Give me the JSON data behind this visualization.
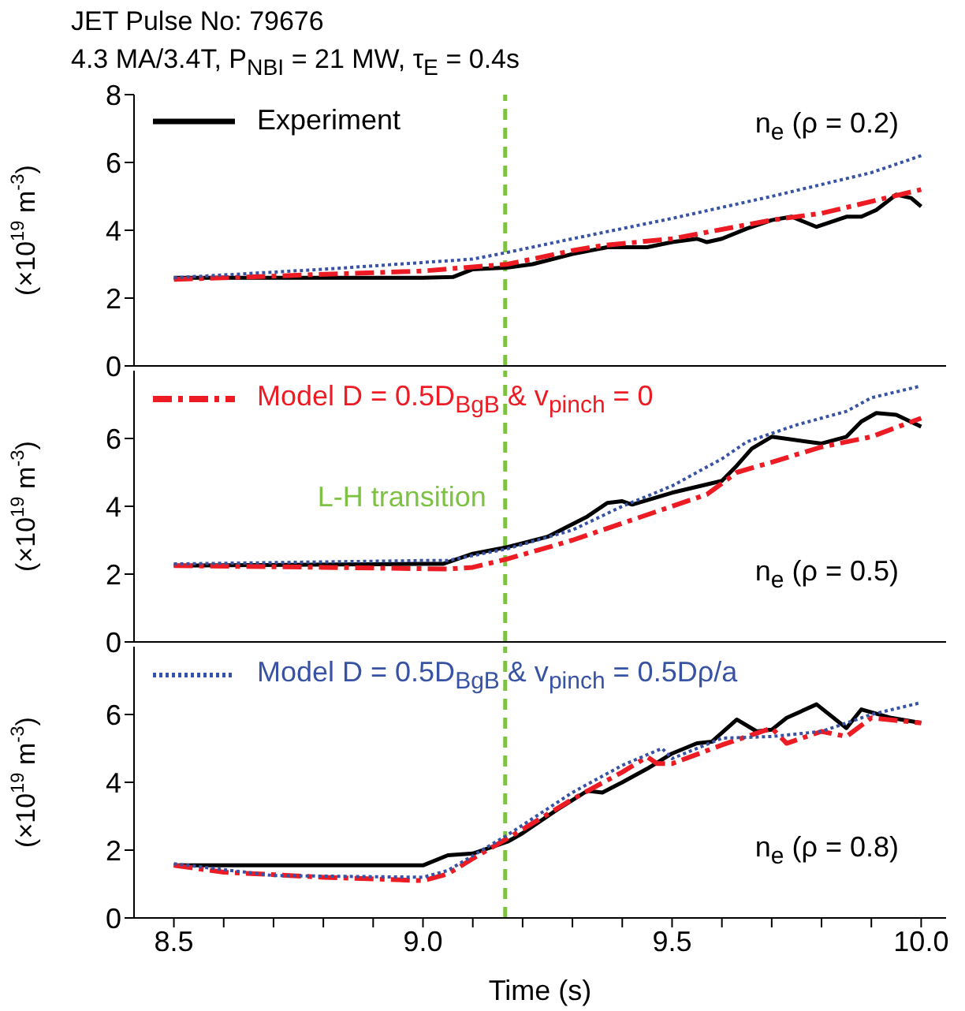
{
  "chart_data": [
    {
      "type": "line",
      "title": "JET Pulse No: 79676",
      "subtitle": "4.3 MA/3.4T, P$_{NBI}$ = 21 MW, τ$_{E}$ = 0.4s",
      "ylabel": "(×10$^{19}$ m$^{-3}$)",
      "xlim": [
        8.42,
        10.05
      ],
      "ylim": [
        0,
        8
      ],
      "yticks": [
        0,
        2,
        4,
        6,
        8
      ],
      "tick_labels": "y",
      "legend": "top left",
      "annotations": [
        "n$_{e}$ (ρ = 0.2)"
      ],
      "ref_lines": [
        {
          "axis": "x",
          "value": 9.165,
          "color": "#7dc242",
          "line_style": "dashed"
        }
      ],
      "series": [
        {
          "name": "Experiment",
          "color": "#000000",
          "line_style": "solid",
          "x": [
            8.5,
            9.0,
            9.06,
            9.1,
            9.17,
            9.22,
            9.3,
            9.37,
            9.45,
            9.5,
            9.55,
            9.57,
            9.6,
            9.65,
            9.7,
            9.74,
            9.79,
            9.85,
            9.88,
            9.91,
            9.95,
            9.98,
            10.0
          ],
          "values": [
            2.6,
            2.6,
            2.62,
            2.85,
            2.9,
            3.0,
            3.3,
            3.5,
            3.5,
            3.65,
            3.75,
            3.65,
            3.75,
            4.05,
            4.3,
            4.4,
            4.1,
            4.4,
            4.4,
            4.6,
            5.05,
            4.95,
            4.7
          ]
        },
        {
          "color": "#ed1c24",
          "line_style": "dashed",
          "x": [
            8.5,
            9.0,
            9.17,
            9.3,
            9.36,
            9.5,
            9.7,
            9.8,
            10.0
          ],
          "values": [
            2.55,
            2.8,
            3.0,
            3.4,
            3.55,
            3.75,
            4.3,
            4.5,
            5.2
          ]
        },
        {
          "color": "#3953a4",
          "line_style": "dotted",
          "x": [
            8.5,
            8.8,
            9.0,
            9.1,
            9.17,
            9.3,
            9.5,
            9.7,
            9.9,
            10.0
          ],
          "values": [
            2.6,
            2.85,
            3.05,
            3.15,
            3.35,
            3.75,
            4.35,
            5.0,
            5.7,
            6.2
          ]
        }
      ]
    },
    {
      "type": "line",
      "ylabel": "(×10$^{19}$ m$^{-3}$)",
      "xlim": [
        8.42,
        10.05
      ],
      "ylim": [
        0,
        8
      ],
      "yticks": [
        0,
        2,
        4,
        6
      ],
      "tick_labels": "y",
      "legend": "top left",
      "annotations": [
        "n$_{e}$ (ρ = 0.5)"
      ],
      "ref_lines": [
        {
          "axis": "x",
          "value": 9.165,
          "label": "L-H transition",
          "color": "#7dc242",
          "line_style": "dashed"
        }
      ],
      "series": [
        {
          "color": "#000000",
          "line_style": "solid",
          "x": [
            8.5,
            9.0,
            9.04,
            9.1,
            9.17,
            9.25,
            9.33,
            9.37,
            9.4,
            9.42,
            9.5,
            9.6,
            9.63,
            9.66,
            9.7,
            9.8,
            9.85,
            9.88,
            9.91,
            9.95,
            10.0
          ],
          "values": [
            2.25,
            2.3,
            2.3,
            2.6,
            2.8,
            3.1,
            3.7,
            4.1,
            4.15,
            4.05,
            4.4,
            4.75,
            5.2,
            5.7,
            6.05,
            5.85,
            6.05,
            6.5,
            6.75,
            6.7,
            6.35
          ]
        },
        {
          "name": "Model D = 0.5D$_{BgB}$ & v$_{pinch}$ = 0",
          "color": "#ed1c24",
          "line_style": "dashed",
          "x": [
            8.5,
            8.8,
            9.05,
            9.1,
            9.17,
            9.3,
            9.4,
            9.5,
            9.57,
            9.63,
            9.7,
            9.8,
            9.9,
            10.0
          ],
          "values": [
            2.25,
            2.2,
            2.15,
            2.2,
            2.45,
            3.0,
            3.5,
            4.0,
            4.35,
            5.0,
            5.3,
            5.75,
            6.05,
            6.6
          ]
        },
        {
          "color": "#3953a4",
          "line_style": "dotted",
          "x": [
            8.5,
            9.0,
            9.05,
            9.17,
            9.3,
            9.4,
            9.5,
            9.6,
            9.65,
            9.75,
            9.85,
            9.9,
            10.0
          ],
          "values": [
            2.3,
            2.4,
            2.4,
            2.75,
            3.3,
            4.0,
            4.6,
            5.4,
            5.9,
            6.4,
            6.8,
            7.2,
            7.55
          ]
        }
      ]
    },
    {
      "type": "line",
      "xlabel": "Time (s)",
      "ylabel": "(×10$^{19}$ m$^{-3}$)",
      "xlim": [
        8.42,
        10.05
      ],
      "ylim": [
        0,
        8
      ],
      "yticks": [
        0,
        2,
        4,
        6
      ],
      "legend": "top left",
      "annotations": [
        "n$_{e}$ (ρ = 0.8)"
      ],
      "xticks": [
        {
          "value": 8.5,
          "label": "8.5"
        },
        {
          "value": 8.6,
          "label": null
        },
        {
          "value": 8.7,
          "label": null
        },
        {
          "value": 8.8,
          "label": null
        },
        {
          "value": 8.9,
          "label": null
        },
        {
          "value": 9,
          "label": "9.0"
        },
        {
          "value": 9.1,
          "label": null
        },
        {
          "value": 9.2,
          "label": null
        },
        {
          "value": 9.3,
          "label": null
        },
        {
          "value": 9.4,
          "label": null
        },
        {
          "value": 9.5,
          "label": "9.5"
        },
        {
          "value": 9.6,
          "label": null
        },
        {
          "value": 9.7,
          "label": null
        },
        {
          "value": 9.8,
          "label": null
        },
        {
          "value": 9.9,
          "label": null
        },
        {
          "value": 10,
          "label": "10.0"
        }
      ],
      "ref_lines": [
        {
          "axis": "x",
          "value": 9.165,
          "color": "#7dc242",
          "line_style": "dashed"
        }
      ],
      "series": [
        {
          "color": "#000000",
          "line_style": "solid",
          "x": [
            8.5,
            9.0,
            9.05,
            9.1,
            9.17,
            9.2,
            9.27,
            9.33,
            9.36,
            9.4,
            9.45,
            9.5,
            9.55,
            9.58,
            9.63,
            9.67,
            9.7,
            9.73,
            9.79,
            9.85,
            9.88,
            9.94,
            10.0
          ],
          "values": [
            1.55,
            1.55,
            1.85,
            1.9,
            2.25,
            2.5,
            3.2,
            3.75,
            3.7,
            4.0,
            4.4,
            4.85,
            5.15,
            5.2,
            5.85,
            5.5,
            5.55,
            5.9,
            6.3,
            5.6,
            6.15,
            5.9,
            5.75
          ]
        },
        {
          "color": "#ed1c24",
          "line_style": "dashed",
          "x": [
            8.5,
            8.6,
            8.8,
            9.0,
            9.05,
            9.1,
            9.17,
            9.3,
            9.4,
            9.45,
            9.47,
            9.5,
            9.6,
            9.65,
            9.7,
            9.73,
            9.8,
            9.85,
            9.9,
            10.0
          ],
          "values": [
            1.55,
            1.35,
            1.2,
            1.1,
            1.3,
            1.75,
            2.35,
            3.5,
            4.3,
            4.75,
            4.55,
            4.55,
            5.1,
            5.35,
            5.6,
            5.15,
            5.5,
            5.35,
            5.9,
            5.75
          ]
        },
        {
          "name": "Model D = 0.5D$_{BgB}$ & v$_{pinch}$ = 0.5Dρ/a",
          "color": "#3953a4",
          "line_style": "dotted",
          "x": [
            8.5,
            8.7,
            9.0,
            9.05,
            9.17,
            9.3,
            9.4,
            9.48,
            9.5,
            9.6,
            9.7,
            9.8,
            9.9,
            10.0
          ],
          "values": [
            1.6,
            1.25,
            1.2,
            1.4,
            2.45,
            3.7,
            4.5,
            5.0,
            4.7,
            5.3,
            5.35,
            5.5,
            6.0,
            6.35
          ]
        }
      ]
    }
  ]
}
